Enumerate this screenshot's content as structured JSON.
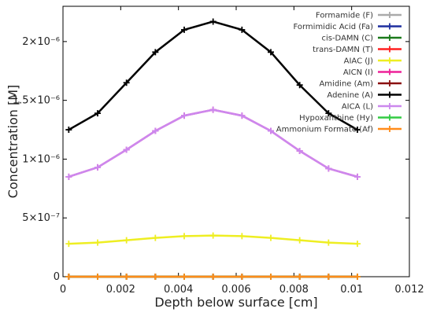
{
  "chart_data": {
    "type": "line",
    "title": "",
    "xlabel": "Depth below surface [cm]",
    "ylabel": "Concentration [M]",
    "xlim": [
      0,
      0.012
    ],
    "ylim": [
      0,
      2.3e-06
    ],
    "x_ticks": [
      {
        "value": 0,
        "label": "0"
      },
      {
        "value": 0.002,
        "label": "0.002"
      },
      {
        "value": 0.004,
        "label": "0.004"
      },
      {
        "value": 0.006,
        "label": "0.006"
      },
      {
        "value": 0.008,
        "label": "0.008"
      },
      {
        "value": 0.01,
        "label": "0.01"
      },
      {
        "value": 0.012,
        "label": "0.012"
      }
    ],
    "y_ticks": [
      {
        "value": 0,
        "label": "0"
      },
      {
        "value": 5e-07,
        "label": "5×10⁻⁷"
      },
      {
        "value": 1e-06,
        "label": "1×10⁻⁶"
      },
      {
        "value": 1.5e-06,
        "label": "1.5×10⁻⁶"
      },
      {
        "value": 2e-06,
        "label": "2×10⁻⁶"
      }
    ],
    "grid": false,
    "legend_position": "top-right",
    "x": [
      0.0002,
      0.0012,
      0.0022,
      0.0032,
      0.0042,
      0.0052,
      0.0062,
      0.0072,
      0.0082,
      0.0092,
      0.0102
    ],
    "series": [
      {
        "name": "Formamide (F)",
        "color": "#aaaaaa",
        "values": [
          0,
          0,
          0,
          0,
          0,
          0,
          0,
          0,
          0,
          0,
          0
        ]
      },
      {
        "name": "Formimidic Acid (Fa)",
        "color": "#1f2f9f",
        "values": [
          0,
          0,
          0,
          0,
          0,
          0,
          0,
          0,
          0,
          0,
          0
        ]
      },
      {
        "name": "cis-DAMN (C)",
        "color": "#1b7a1b",
        "values": [
          0,
          0,
          0,
          0,
          0,
          0,
          0,
          0,
          0,
          0,
          0
        ]
      },
      {
        "name": "trans-DAMN (T)",
        "color": "#ff2020",
        "values": [
          0,
          0,
          0,
          0,
          0,
          0,
          0,
          0,
          0,
          0,
          0
        ]
      },
      {
        "name": "AIAC (J)",
        "color": "#eeee22",
        "values": [
          2.8e-07,
          2.9e-07,
          3.1e-07,
          3.3e-07,
          3.45e-07,
          3.5e-07,
          3.45e-07,
          3.3e-07,
          3.1e-07,
          2.9e-07,
          2.8e-07
        ]
      },
      {
        "name": "AICN (I)",
        "color": "#ee2299",
        "values": [
          8.5e-07,
          9.3e-07,
          1.08e-06,
          1.24e-06,
          1.37e-06,
          1.42e-06,
          1.37e-06,
          1.24e-06,
          1.07e-06,
          9.2e-07,
          8.5e-07
        ]
      },
      {
        "name": "Amidine (Am)",
        "color": "#8b1010",
        "values": [
          0,
          0,
          0,
          0,
          0,
          0,
          0,
          0,
          0,
          0,
          0
        ]
      },
      {
        "name": "Adenine (A)",
        "color": "#000000",
        "values": [
          1.25e-06,
          1.39e-06,
          1.65e-06,
          1.91e-06,
          2.1e-06,
          2.17e-06,
          2.1e-06,
          1.91e-06,
          1.63e-06,
          1.39e-06,
          1.25e-06
        ]
      },
      {
        "name": "AICA (L)",
        "color": "#cc88ee",
        "values": [
          8.5e-07,
          9.3e-07,
          1.08e-06,
          1.24e-06,
          1.37e-06,
          1.42e-06,
          1.37e-06,
          1.24e-06,
          1.07e-06,
          9.2e-07,
          8.5e-07
        ]
      },
      {
        "name": "Hypoxanthine (Hy)",
        "color": "#33cc44",
        "values": [
          0,
          0,
          0,
          0,
          0,
          0,
          0,
          0,
          0,
          0,
          0
        ]
      },
      {
        "name": "Ammonium Formate (Af)",
        "color": "#ff8c1a",
        "values": [
          0,
          0,
          0,
          0,
          0,
          0,
          0,
          0,
          0,
          0,
          0
        ]
      }
    ]
  }
}
